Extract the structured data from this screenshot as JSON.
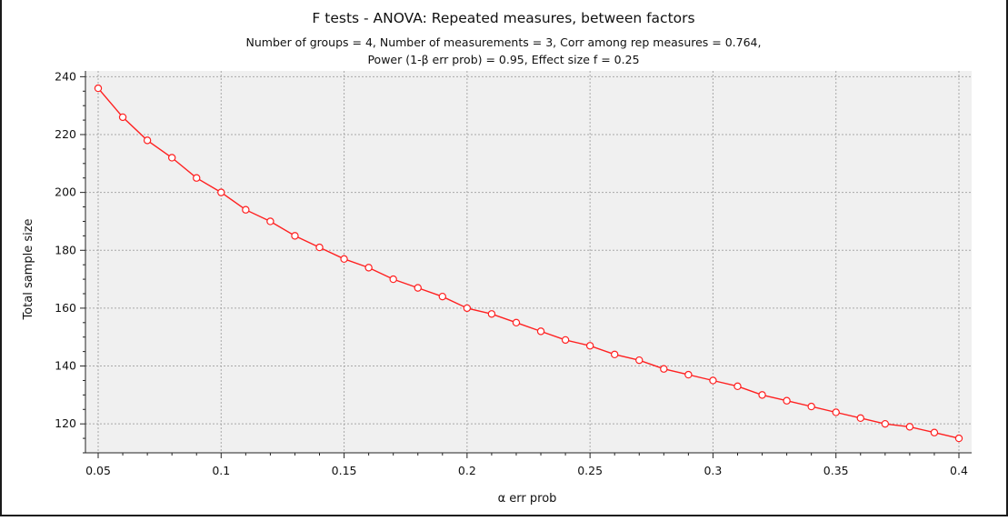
{
  "chart_data": {
    "type": "line",
    "title": "F tests - ANOVA: Repeated measures, between factors",
    "subtitle_lines": [
      "Number of groups = 4, Number of measurements = 3, Corr among rep measures = 0.764,",
      "Power (1-β err prob) = 0.95, Effect size f = 0.25"
    ],
    "xlabel": "α err prob",
    "ylabel": "Total sample size",
    "xlim": [
      0.05,
      0.4
    ],
    "ylim": [
      110,
      242
    ],
    "x_ticks": [
      0.05,
      0.1,
      0.15,
      0.2,
      0.25,
      0.3,
      0.35,
      0.4
    ],
    "x_tick_labels": [
      "0.05",
      "0.1",
      "0.15",
      "0.2",
      "0.25",
      "0.3",
      "0.35",
      "0.4"
    ],
    "y_ticks": [
      120,
      140,
      160,
      180,
      200,
      220,
      240
    ],
    "y_tick_labels": [
      "120",
      "140",
      "160",
      "180",
      "200",
      "220",
      "240"
    ],
    "grid": true,
    "series": [
      {
        "color": "#ff2020",
        "x": [
          0.05,
          0.06,
          0.07,
          0.08,
          0.09,
          0.1,
          0.11,
          0.12,
          0.13,
          0.14,
          0.15,
          0.16,
          0.17,
          0.18,
          0.19,
          0.2,
          0.21,
          0.22,
          0.23,
          0.24,
          0.25,
          0.26,
          0.27,
          0.28,
          0.29,
          0.3,
          0.31,
          0.32,
          0.33,
          0.34,
          0.35,
          0.36,
          0.37,
          0.38,
          0.39,
          0.4
        ],
        "y": [
          236,
          226,
          218,
          212,
          205,
          200,
          194,
          190,
          185,
          181,
          177,
          174,
          170,
          167,
          164,
          160,
          158,
          155,
          152,
          149,
          147,
          144,
          142,
          139,
          137,
          135,
          133,
          130,
          128,
          126,
          124,
          122,
          120,
          119,
          117,
          115
        ]
      }
    ]
  }
}
